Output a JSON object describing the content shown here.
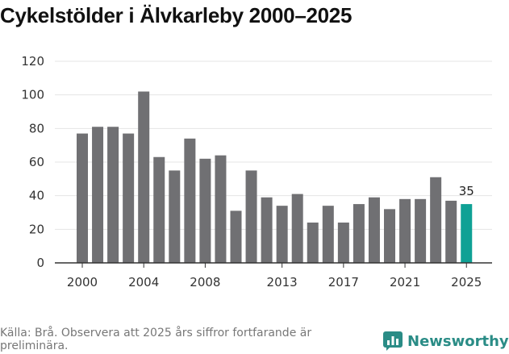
{
  "header": {
    "title": "Cykelstölder i Älvkarleby 2000–2025"
  },
  "footer": {
    "source": "Källa: Brå. Observera att 2025 års siffror fortfarande är preliminära.",
    "brand": "Newsworthy"
  },
  "colors": {
    "bar": "#707073",
    "highlight": "#0fa195",
    "grid": "#e5e5e5",
    "axis": "#333333",
    "brand": "#2a8c86"
  },
  "icons": {
    "brand_logo": "bar-chart-speech-bubble-icon"
  },
  "chart_data": {
    "type": "bar",
    "title": "Cykelstölder i Älvkarleby 2000–2025",
    "xlabel": "",
    "ylabel": "",
    "ylim": [
      0,
      120
    ],
    "yticks": [
      0,
      20,
      40,
      60,
      80,
      100,
      120
    ],
    "xtick_labels": [
      "2000",
      "2004",
      "2008",
      "2013",
      "2017",
      "2021",
      "2025"
    ],
    "grid": true,
    "categories": [
      "2000",
      "2001",
      "2002",
      "2003",
      "2004",
      "2005",
      "2006",
      "2007",
      "2008",
      "2009",
      "2010",
      "2011",
      "2012",
      "2013",
      "2014",
      "2015",
      "2016",
      "2017",
      "2018",
      "2019",
      "2020",
      "2021",
      "2022",
      "2023",
      "2024",
      "2025"
    ],
    "values": [
      77,
      81,
      81,
      77,
      102,
      63,
      55,
      74,
      62,
      64,
      31,
      55,
      39,
      34,
      41,
      24,
      34,
      24,
      35,
      39,
      32,
      38,
      38,
      51,
      37,
      35
    ],
    "highlight_category": "2025",
    "data_labels": [
      {
        "category": "2025",
        "text": "35"
      }
    ]
  }
}
